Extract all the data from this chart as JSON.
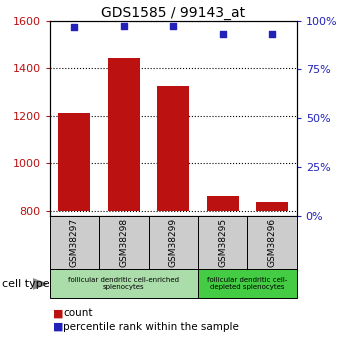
{
  "title": "GDS1585 / 99143_at",
  "samples": [
    "GSM38297",
    "GSM38298",
    "GSM38299",
    "GSM38295",
    "GSM38296"
  ],
  "counts": [
    1210,
    1445,
    1325,
    862,
    836
  ],
  "percentiles": [
    97.0,
    97.5,
    97.5,
    93.0,
    93.0
  ],
  "ylim_left": [
    780,
    1600
  ],
  "ylim_right": [
    0,
    100
  ],
  "yticks_left": [
    800,
    1000,
    1200,
    1400,
    1600
  ],
  "yticks_right": [
    0,
    25,
    50,
    75,
    100
  ],
  "bar_color": "#bb1111",
  "dot_color": "#2222bb",
  "bar_bottom": 800,
  "groups": [
    {
      "label": "follicular dendritic cell-enriched\nsplenocytes",
      "samples": [
        0,
        1,
        2
      ],
      "color": "#aaddaa"
    },
    {
      "label": "follicular dendritic cell-\ndepleted splenocytes",
      "samples": [
        3,
        4
      ],
      "color": "#44cc44"
    }
  ],
  "xlabel_area": "cell type",
  "legend_count_label": "count",
  "legend_percentile_label": "percentile rank within the sample",
  "label_box_color": "#cccccc",
  "background_color": "#ffffff"
}
